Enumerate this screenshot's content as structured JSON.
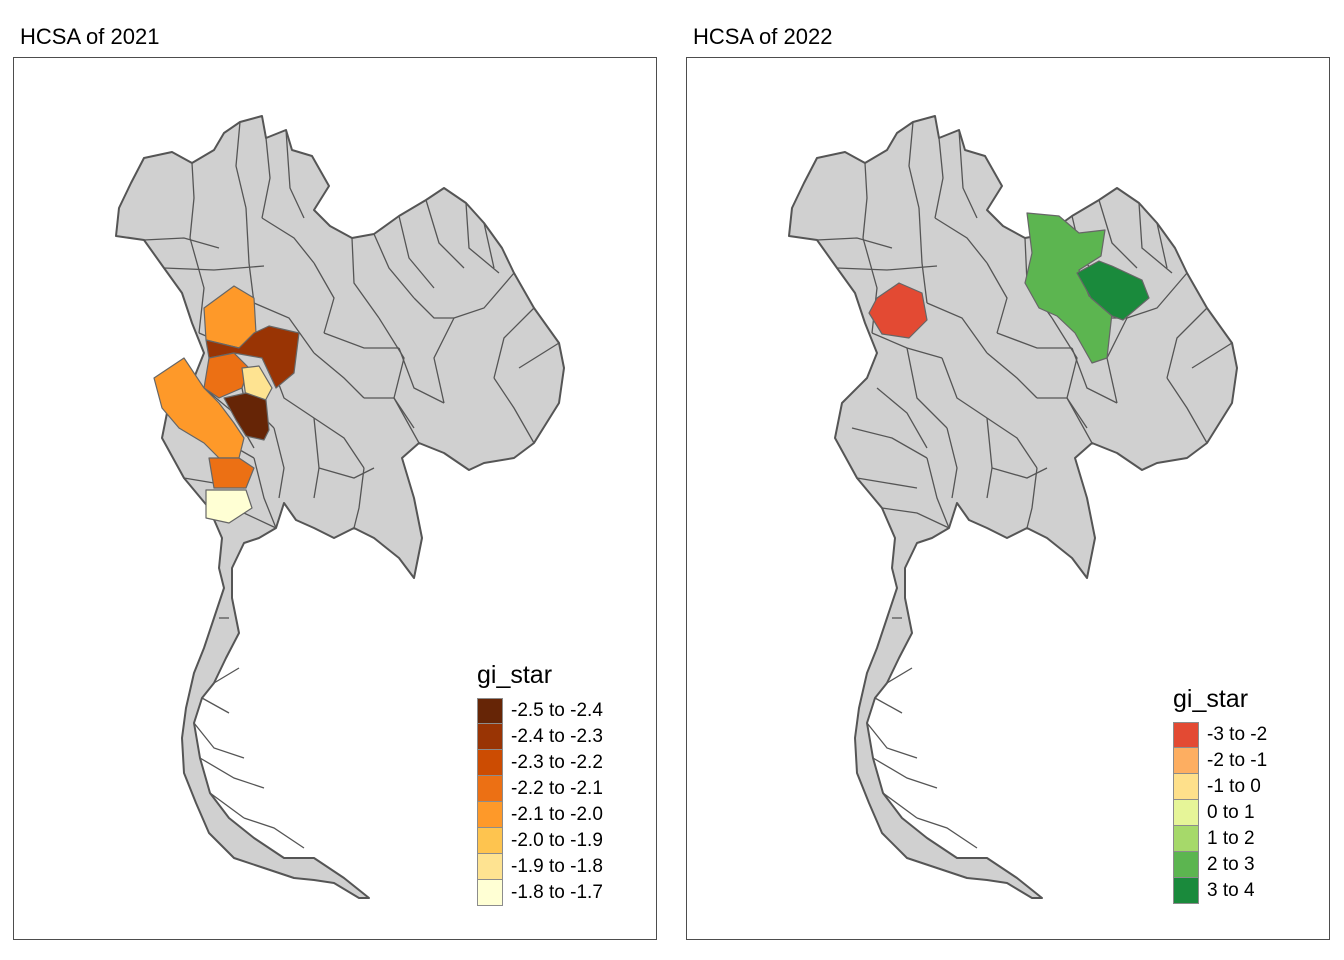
{
  "panels": [
    {
      "title": "HCSA of 2021",
      "legend": {
        "title": "gi_star",
        "items": [
          {
            "label": "-2.5 to -2.4",
            "color": "#662506"
          },
          {
            "label": "-2.4 to -2.3",
            "color": "#993404"
          },
          {
            "label": "-2.3 to -2.2",
            "color": "#cc4c02"
          },
          {
            "label": "-2.2 to -2.1",
            "color": "#ec7014"
          },
          {
            "label": "-2.1 to -2.0",
            "color": "#fe9929"
          },
          {
            "label": "-2.0 to -1.9",
            "color": "#fec44f"
          },
          {
            "label": "-1.9 to -1.8",
            "color": "#fee391"
          },
          {
            "label": "-1.8 to -1.7",
            "color": "#ffffd4"
          }
        ]
      }
    },
    {
      "title": "HCSA of 2022",
      "legend": {
        "title": "gi_star",
        "items": [
          {
            "label": "-3 to -2",
            "color": "#e34a33"
          },
          {
            "label": "-2 to -1",
            "color": "#fdae61"
          },
          {
            "label": "-1 to 0",
            "color": "#fee08b"
          },
          {
            "label": "0 to 1",
            "color": "#e6f598"
          },
          {
            "label": "1 to 2",
            "color": "#a6d96a"
          },
          {
            "label": "2 to 3",
            "color": "#5cb550"
          },
          {
            "label": "3 to 4",
            "color": "#1a8a3c"
          }
        ]
      }
    }
  ],
  "style": {
    "land_color": "#d0d0d0",
    "border_color": "#555555"
  }
}
